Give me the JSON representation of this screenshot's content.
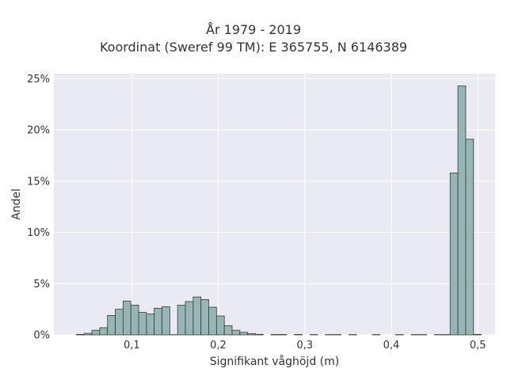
{
  "chart_data": {
    "type": "bar",
    "title": "År 1979 - 2019",
    "subtitle": "Koordinat (Sweref 99 TM): E 365755, N 6146389",
    "xlabel": "Signifikant våghöjd (m)",
    "ylabel": "Andel",
    "xlim": [
      0.01,
      0.52
    ],
    "ylim": [
      0,
      25.5
    ],
    "xticks": [
      0.1,
      0.2,
      0.3,
      0.4,
      0.5
    ],
    "xtick_labels": [
      "0,1",
      "0,2",
      "0,3",
      "0,4",
      "0,5"
    ],
    "yticks": [
      0,
      5,
      10,
      15,
      20,
      25
    ],
    "ytick_labels": [
      "0%",
      "5%",
      "10%",
      "15%",
      "20%",
      "25%"
    ],
    "bin_width": 0.009,
    "bins": [
      0.036,
      0.045,
      0.054,
      0.063,
      0.072,
      0.081,
      0.09,
      0.099,
      0.108,
      0.117,
      0.126,
      0.135,
      0.144,
      0.153,
      0.162,
      0.171,
      0.18,
      0.189,
      0.198,
      0.207,
      0.216,
      0.225,
      0.234,
      0.243,
      0.252,
      0.261,
      0.27,
      0.279,
      0.288,
      0.297,
      0.306,
      0.315,
      0.324,
      0.333,
      0.342,
      0.351,
      0.36,
      0.369,
      0.378,
      0.387,
      0.396,
      0.405,
      0.414,
      0.423,
      0.432,
      0.441,
      0.45,
      0.459,
      0.468,
      0.477,
      0.486,
      0.495
    ],
    "values": [
      0.05,
      0.15,
      0.45,
      0.7,
      1.9,
      2.5,
      3.3,
      2.9,
      2.2,
      2.05,
      2.6,
      2.75,
      0.02,
      2.9,
      3.25,
      3.7,
      3.45,
      2.7,
      1.85,
      0.9,
      0.45,
      0.25,
      0.12,
      0.05,
      0.0,
      0.04,
      0.04,
      0.0,
      0.04,
      0.0,
      0.03,
      0.0,
      0.03,
      0.03,
      0.0,
      0.03,
      0.0,
      0.0,
      0.03,
      0.0,
      0.0,
      0.03,
      0.0,
      0.03,
      0.03,
      0.0,
      0.03,
      0.03,
      15.8,
      24.3,
      19.1,
      0.05
    ],
    "colors": {
      "bar_fill": "#97b5b3",
      "bar_stroke": "#3a3a3a",
      "plot_background": "#eaeaf2",
      "grid": "#ffffff"
    },
    "grid": true
  }
}
